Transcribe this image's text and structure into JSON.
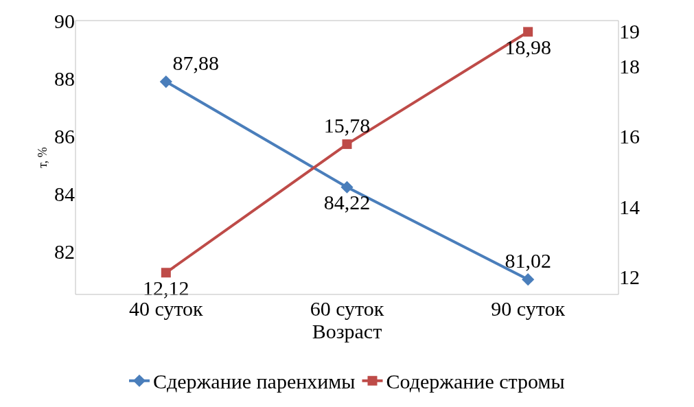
{
  "chart_data": {
    "type": "line",
    "xlabel": "Возраст",
    "ylabel": "т, %",
    "categories": [
      "40 суток",
      "60 суток",
      "90 суток"
    ],
    "series": [
      {
        "name": "Сдержание паренхимы",
        "color": "#4a7ebb",
        "values": [
          87.88,
          84.22,
          81.02
        ],
        "value_labels": [
          "87,88",
          "84,22",
          "81,02"
        ],
        "marker": "diamond"
      },
      {
        "name": "Содержание стромы",
        "color": "#be4b48",
        "values": [
          12.12,
          15.78,
          18.98
        ],
        "value_labels": [
          "12,12",
          "15,78",
          "18,98"
        ],
        "marker": "square",
        "axis": "y2"
      }
    ],
    "ylim": [
      80.5,
      90
    ],
    "yticks": [
      82,
      84,
      86,
      88,
      90
    ],
    "y2lim": [
      11.5,
      19.3
    ],
    "y2ticks": [
      12,
      14,
      16,
      18,
      19
    ],
    "legend": "bottom",
    "line_style": "solid"
  }
}
